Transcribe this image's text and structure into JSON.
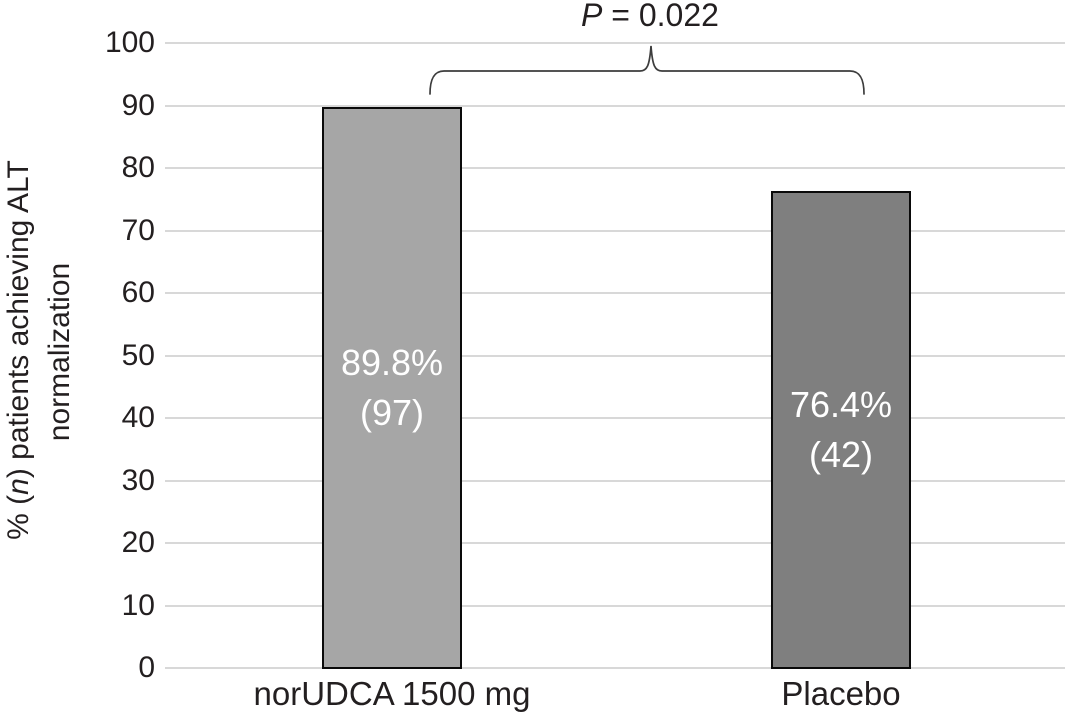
{
  "chart_data": {
    "type": "bar",
    "title": "",
    "categories": [
      "norUDCA 1500 mg",
      "Placebo"
    ],
    "series": [
      {
        "name": "% (n) patients achieving ALT normalization",
        "values": [
          89.8,
          76.4
        ]
      }
    ],
    "counts": [
      97,
      42
    ],
    "bar_value_labels": [
      [
        "89.8%",
        "(97)"
      ],
      [
        "76.4%",
        "(42)"
      ]
    ],
    "bar_colors": [
      "#A6A6A6",
      "#7F7F7F"
    ],
    "bar_border_color": "#0a0a0a",
    "xlabel": "",
    "ylabel": "% (n) patients achieving ALT normalization",
    "ylim": [
      0,
      100
    ],
    "yticks": [
      0,
      10,
      20,
      30,
      40,
      50,
      60,
      70,
      80,
      90,
      100
    ],
    "grid": "horizontal",
    "gridline_color": "#D8D8D8",
    "legend_position": "none",
    "annotation": "P = 0.022"
  },
  "y_axis": {
    "title_pre": "% (",
    "title_italic": "n",
    "title_post": ") patients achieving ALT",
    "title_line2": "normalization",
    "tick_labels": [
      "100",
      "90",
      "80",
      "70",
      "60",
      "50",
      "40",
      "30",
      "20",
      "10",
      "0"
    ]
  },
  "bars": [
    {
      "category": "norUDCA 1500 mg",
      "pct_label": "89.8%",
      "n_label": "(97)",
      "value": 89.8,
      "color": "#A6A6A6"
    },
    {
      "category": "Placebo",
      "pct_label": "76.4%",
      "n_label": "(42)",
      "value": 76.4,
      "color": "#7F7F7F"
    }
  ],
  "annotation": {
    "p_italic": "P",
    "p_rest": " = 0.022"
  }
}
